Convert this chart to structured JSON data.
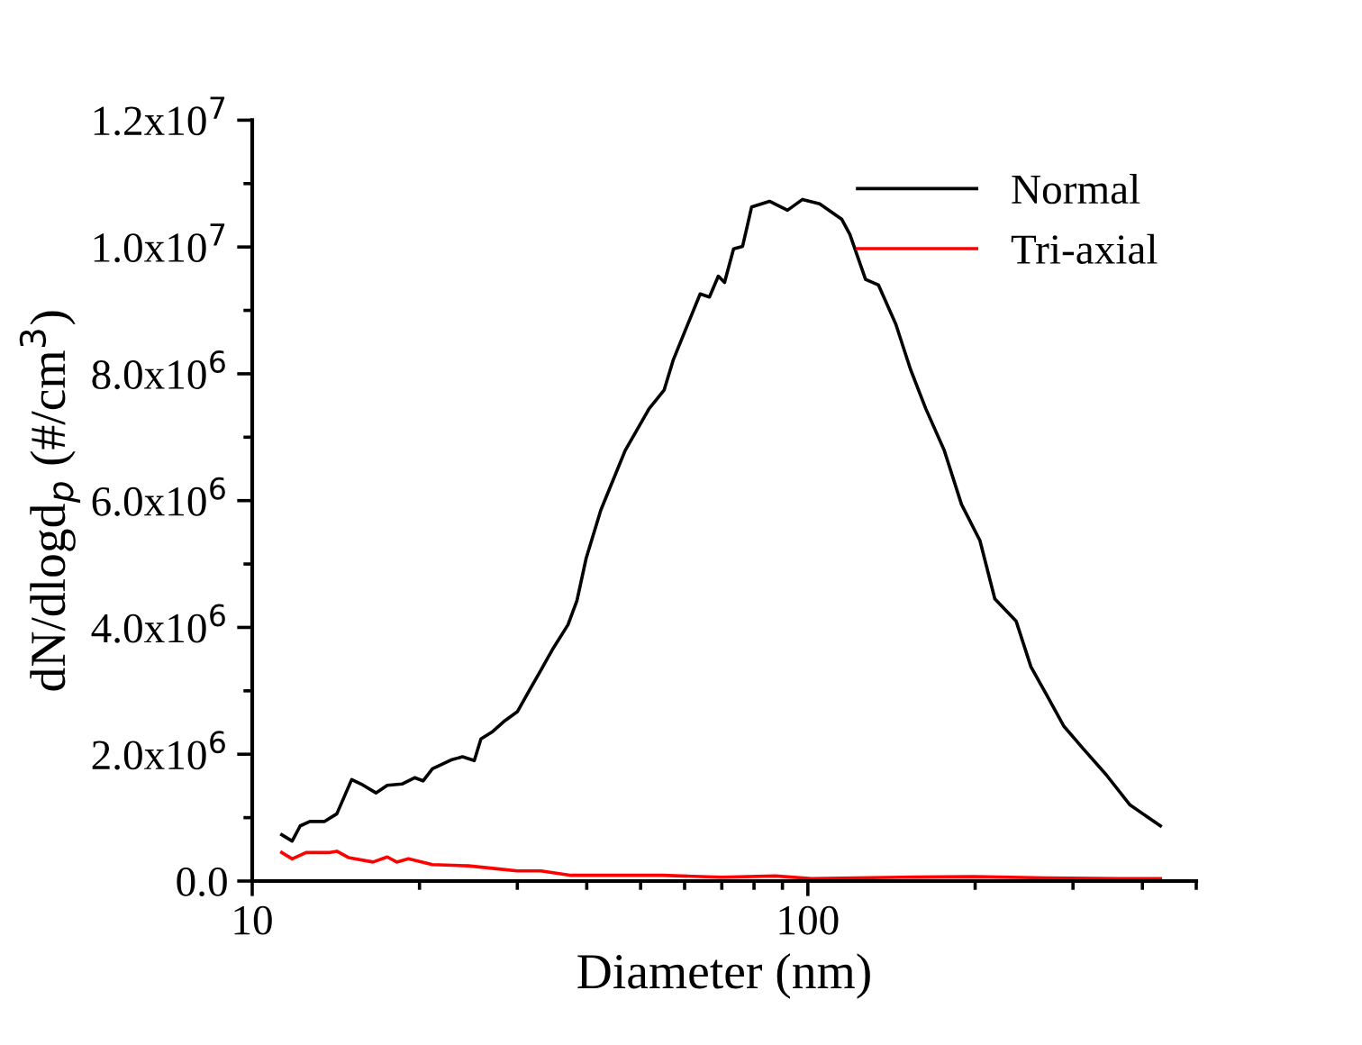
{
  "chart_data": {
    "type": "line",
    "xlabel": "Diameter (nm)",
    "ylabel": "dN/dlogd$_{p}$ (#/cm$^{3}$)",
    "log": "x",
    "legend": "top right",
    "grid": false,
    "xlim": [
      10,
      500
    ],
    "xticks": [
      10,
      {
        "value": 20,
        "label": null
      },
      {
        "value": 30,
        "label": null
      },
      {
        "value": 40,
        "label": null
      },
      {
        "value": 50,
        "label": null
      },
      {
        "value": 60,
        "label": null
      },
      {
        "value": 70,
        "label": null
      },
      {
        "value": 80,
        "label": null
      },
      {
        "value": 90,
        "label": null
      },
      100,
      {
        "value": 200,
        "label": null
      },
      {
        "value": 300,
        "label": null
      },
      {
        "value": 400,
        "label": null
      },
      {
        "value": 500,
        "label": null
      }
    ],
    "ylim": [
      0,
      12000000
    ],
    "yticks": [
      {
        "value": 0,
        "label": "0.0"
      },
      {
        "value": 1000000,
        "label": null
      },
      {
        "value": 2000000,
        "label": "2.0x10$^{6}$"
      },
      {
        "value": 3000000,
        "label": null
      },
      {
        "value": 4000000,
        "label": "4.0x10$^{6}$"
      },
      {
        "value": 5000000,
        "label": null
      },
      {
        "value": 6000000,
        "label": "6.0x10$^{6}$"
      },
      {
        "value": 7000000,
        "label": null
      },
      {
        "value": 8000000,
        "label": "8.0x10$^{6}$"
      },
      {
        "value": 9000000,
        "label": null
      },
      {
        "value": 10000000,
        "label": "1.0x10$^{7}$"
      },
      {
        "value": 11000000,
        "label": null
      },
      {
        "value": 12000000,
        "label": "1.2x10$^{7}$"
      }
    ],
    "series": [
      {
        "name": "Normal",
        "color": "#000000",
        "x": [
          11.3,
          11.8,
          12.2,
          12.7,
          13.5,
          14.2,
          15.1,
          15.7,
          16.7,
          17.5,
          18.6,
          19.6,
          20.3,
          21.1,
          22.8,
          23.9,
          25.1,
          25.8,
          27.1,
          28.5,
          30.0,
          31.5,
          33.1,
          34.8,
          37.0,
          38.4,
          39.9,
          42.4,
          46.9,
          51.8,
          55.1,
          57.2,
          60.2,
          64.0,
          66.5,
          69.0,
          70.8,
          73.5,
          76.3,
          79.2,
          85.3,
          91.9,
          97.8,
          105,
          115,
          119,
          127,
          134,
          144,
          153,
          163,
          176,
          189,
          204,
          217,
          237,
          252,
          268,
          289,
          312,
          344,
          380,
          431
        ],
        "values": [
          730000,
          630000,
          870000,
          940000,
          940000,
          1060000,
          1600000,
          1530000,
          1390000,
          1510000,
          1530000,
          1630000,
          1580000,
          1770000,
          1910000,
          1960000,
          1900000,
          2240000,
          2360000,
          2530000,
          2670000,
          3000000,
          3330000,
          3670000,
          4040000,
          4420000,
          5090000,
          5850000,
          6790000,
          7450000,
          7740000,
          8210000,
          8690000,
          9260000,
          9210000,
          9540000,
          9440000,
          9970000,
          10010000,
          10630000,
          10720000,
          10580000,
          10750000,
          10680000,
          10440000,
          10200000,
          9490000,
          9400000,
          8780000,
          8070000,
          7450000,
          6790000,
          5940000,
          5370000,
          4450000,
          4100000,
          3380000,
          2960000,
          2440000,
          2100000,
          1680000,
          1200000,
          870000
        ]
      },
      {
        "name": "Tri-axial",
        "color": "#ff0000",
        "x": [
          11.3,
          11.8,
          12.5,
          13.8,
          14.2,
          14.9,
          16.5,
          17.5,
          18.2,
          19.1,
          21.1,
          24.5,
          27.8,
          30.0,
          33.1,
          37.5,
          42.4,
          54.5,
          69.9,
          87.4,
          101.5,
          147.5,
          199,
          268,
          362,
          431
        ],
        "values": [
          450000,
          350000,
          450000,
          450000,
          470000,
          370000,
          300000,
          380000,
          300000,
          350000,
          260000,
          240000,
          190000,
          160000,
          160000,
          90000,
          90000,
          90000,
          60000,
          80000,
          40000,
          60000,
          70000,
          50000,
          40000,
          40000
        ]
      }
    ]
  }
}
